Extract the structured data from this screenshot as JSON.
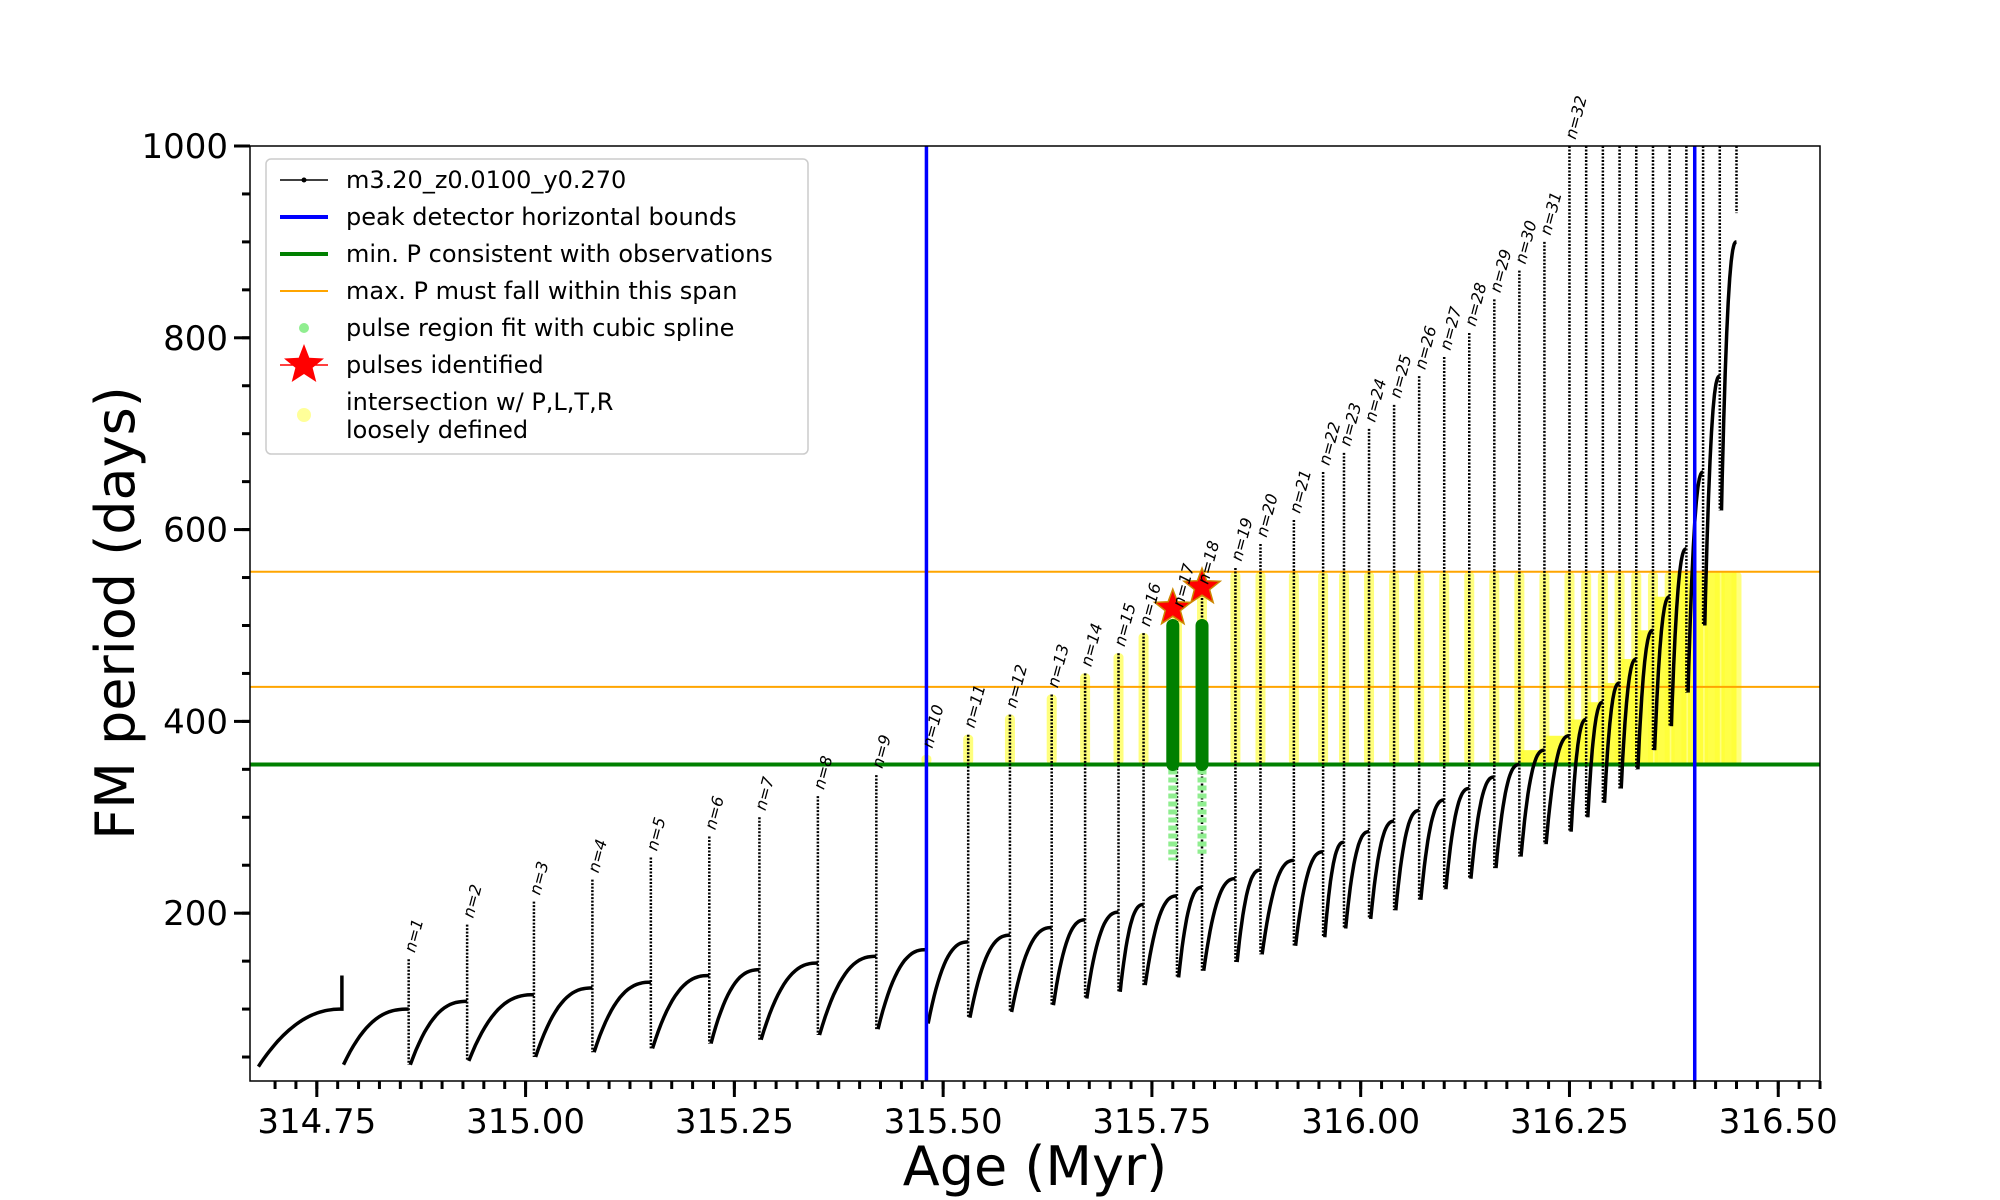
{
  "chart_data": {
    "type": "line",
    "xlabel": "Age (Myr)",
    "ylabel": "FM period (days)",
    "xlim": [
      314.67,
      316.55
    ],
    "ylim": [
      25,
      1000
    ],
    "xticks": [
      314.75,
      315.0,
      315.25,
      315.5,
      315.75,
      316.0,
      316.25,
      316.5
    ],
    "xtick_labels": [
      "314.75",
      "315.00",
      "315.25",
      "315.50",
      "315.75",
      "316.00",
      "316.25",
      "316.50"
    ],
    "yticks": [
      200,
      400,
      600,
      800,
      1000
    ],
    "ytick_labels": [
      "200",
      "400",
      "600",
      "800",
      "1000"
    ],
    "legend": {
      "position": "upper-left",
      "entries": [
        {
          "label": "m3.20_z0.0100_y0.270",
          "kind": "line-marker",
          "color": "#000000"
        },
        {
          "label": "peak detector horizontal bounds",
          "kind": "line",
          "color": "#0000ff"
        },
        {
          "label": "min. P consistent with observations",
          "kind": "line",
          "color": "#008000"
        },
        {
          "label": "max. P must fall within this span",
          "kind": "thin-line",
          "color": "#ffa500"
        },
        {
          "label": "pulse region fit with cubic spline",
          "kind": "dot",
          "color": "#90ee90"
        },
        {
          "label": "pulses identified",
          "kind": "star",
          "color": "#ff0000"
        },
        {
          "label": "intersection w/ P,L,T,R\nloosely defined",
          "kind": "yellow-dot",
          "color": "#ffff99"
        }
      ]
    },
    "vlines": {
      "color": "#0000ff",
      "x": [
        315.48,
        316.4
      ]
    },
    "hline_min": {
      "color": "#008000",
      "y": 355
    },
    "hlines_span": {
      "color": "#ffa500",
      "y": [
        436,
        556
      ]
    },
    "series_color": "#000000",
    "pulses": [
      {
        "n": "n=1",
        "x": 314.86,
        "y_pre": 100,
        "y_peak": 152,
        "y_min": 42
      },
      {
        "n": "n=2",
        "x": 314.93,
        "y_pre": 108,
        "y_peak": 188,
        "y_min": 46
      },
      {
        "n": "n=3",
        "x": 315.01,
        "y_pre": 115,
        "y_peak": 212,
        "y_min": 50
      },
      {
        "n": "n=4",
        "x": 315.08,
        "y_pre": 122,
        "y_peak": 235,
        "y_min": 55
      },
      {
        "n": "n=5",
        "x": 315.15,
        "y_pre": 128,
        "y_peak": 258,
        "y_min": 59
      },
      {
        "n": "n=6",
        "x": 315.22,
        "y_pre": 135,
        "y_peak": 280,
        "y_min": 64
      },
      {
        "n": "n=7",
        "x": 315.28,
        "y_pre": 141,
        "y_peak": 300,
        "y_min": 68
      },
      {
        "n": "n=8",
        "x": 315.35,
        "y_pre": 148,
        "y_peak": 322,
        "y_min": 73
      },
      {
        "n": "n=9",
        "x": 315.42,
        "y_pre": 155,
        "y_peak": 344,
        "y_min": 79
      },
      {
        "n": "n=10",
        "x": 315.48,
        "y_pre": 162,
        "y_peak": 365,
        "y_min": 85
      },
      {
        "n": "n=11",
        "x": 315.53,
        "y_pre": 170,
        "y_peak": 386,
        "y_min": 91
      },
      {
        "n": "n=12",
        "x": 315.58,
        "y_pre": 177,
        "y_peak": 407,
        "y_min": 97
      },
      {
        "n": "n=13",
        "x": 315.63,
        "y_pre": 185,
        "y_peak": 428,
        "y_min": 104
      },
      {
        "n": "n=14",
        "x": 315.67,
        "y_pre": 193,
        "y_peak": 450,
        "y_min": 111
      },
      {
        "n": "n=15",
        "x": 315.71,
        "y_pre": 201,
        "y_peak": 471,
        "y_min": 118
      },
      {
        "n": "n=16",
        "x": 315.74,
        "y_pre": 209,
        "y_peak": 492,
        "y_min": 125
      },
      {
        "n": "n=17",
        "x": 315.78,
        "y_pre": 218,
        "y_peak": 512,
        "y_min": 133
      },
      {
        "n": "n=18",
        "x": 315.81,
        "y_pre": 227,
        "y_peak": 536,
        "y_min": 140
      },
      {
        "n": "n=19",
        "x": 315.85,
        "y_pre": 236,
        "y_peak": 560,
        "y_min": 149
      },
      {
        "n": "n=20",
        "x": 315.88,
        "y_pre": 245,
        "y_peak": 585,
        "y_min": 157
      },
      {
        "n": "n=21",
        "x": 315.92,
        "y_pre": 255,
        "y_peak": 610,
        "y_min": 166
      },
      {
        "n": "n=22",
        "x": 315.955,
        "y_pre": 264,
        "y_peak": 660,
        "y_min": 175
      },
      {
        "n": "n=23",
        "x": 315.98,
        "y_pre": 274,
        "y_peak": 680,
        "y_min": 184
      },
      {
        "n": "n=24",
        "x": 316.01,
        "y_pre": 285,
        "y_peak": 705,
        "y_min": 194
      },
      {
        "n": "n=25",
        "x": 316.04,
        "y_pre": 296,
        "y_peak": 730,
        "y_min": 203
      },
      {
        "n": "n=26",
        "x": 316.07,
        "y_pre": 307,
        "y_peak": 760,
        "y_min": 214
      },
      {
        "n": "n=27",
        "x": 316.1,
        "y_pre": 318,
        "y_peak": 780,
        "y_min": 225
      },
      {
        "n": "n=28",
        "x": 316.13,
        "y_pre": 330,
        "y_peak": 805,
        "y_min": 236
      },
      {
        "n": "n=29",
        "x": 316.16,
        "y_pre": 342,
        "y_peak": 840,
        "y_min": 247
      },
      {
        "n": "n=30",
        "x": 316.19,
        "y_pre": 355,
        "y_peak": 870,
        "y_min": 259
      },
      {
        "n": "n=31",
        "x": 316.22,
        "y_pre": 370,
        "y_peak": 900,
        "y_min": 272
      },
      {
        "n": "n=32",
        "x": 316.25,
        "y_pre": 385,
        "y_peak": 1000,
        "y_min": 285
      }
    ],
    "late_pulses": [
      {
        "x": 316.27,
        "y_pre": 402,
        "y_peak": 1000,
        "y_min": 300
      },
      {
        "x": 316.29,
        "y_pre": 420,
        "y_peak": 1000,
        "y_min": 315
      },
      {
        "x": 316.31,
        "y_pre": 440,
        "y_peak": 1000,
        "y_min": 330
      },
      {
        "x": 316.33,
        "y_pre": 465,
        "y_peak": 1000,
        "y_min": 350
      },
      {
        "x": 316.35,
        "y_pre": 495,
        "y_peak": 1000,
        "y_min": 370
      },
      {
        "x": 316.37,
        "y_pre": 530,
        "y_peak": 1000,
        "y_min": 395
      },
      {
        "x": 316.39,
        "y_pre": 580,
        "y_peak": 1000,
        "y_min": 430
      },
      {
        "x": 316.41,
        "y_pre": 660,
        "y_peak": 1000,
        "y_min": 500
      },
      {
        "x": 316.43,
        "y_pre": 760,
        "y_peak": 1000,
        "y_min": 620
      },
      {
        "x": 316.45,
        "y_pre": 900,
        "y_peak": 1000,
        "y_min": 930
      }
    ],
    "start_curve": {
      "x0": 314.68,
      "y0": 40,
      "x_end": 314.78,
      "y_end": 100,
      "y_spike": 135
    },
    "identified_pulses": [
      {
        "x": 315.775,
        "y": 518,
        "spline_ymin": 255,
        "spline_ymax": 500
      },
      {
        "x": 315.81,
        "y": 540,
        "spline_ymin": 262,
        "spline_ymax": 500
      }
    ]
  }
}
